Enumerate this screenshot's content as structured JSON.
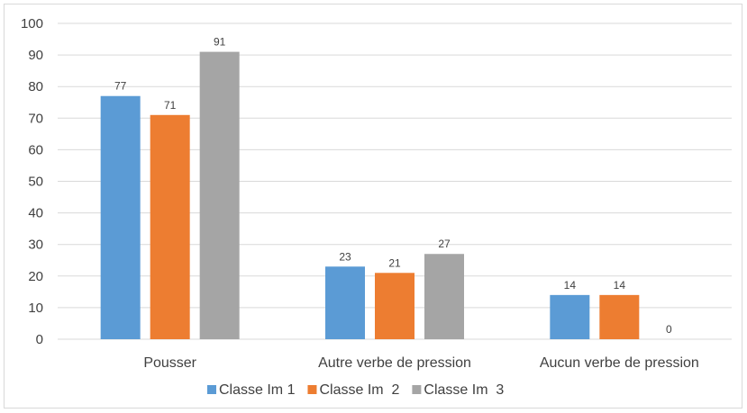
{
  "chart_data": {
    "type": "bar",
    "categories": [
      "Pousser",
      "Autre verbe de pression",
      "Aucun verbe de pression"
    ],
    "series": [
      {
        "name": "Classe Im 1",
        "values": [
          77,
          23,
          14
        ],
        "color": "#5b9bd5"
      },
      {
        "name": "Classe Im  2",
        "values": [
          71,
          21,
          14
        ],
        "color": "#ed7d31"
      },
      {
        "name": "Classe Im  3",
        "values": [
          91,
          27,
          0
        ],
        "color": "#a5a5a5"
      }
    ],
    "ylim": [
      0,
      100
    ],
    "yticks": [
      0,
      10,
      20,
      30,
      40,
      50,
      60,
      70,
      80,
      90,
      100
    ],
    "grid": true,
    "legend": "bottom",
    "title": "",
    "xlabel": "",
    "ylabel": ""
  }
}
